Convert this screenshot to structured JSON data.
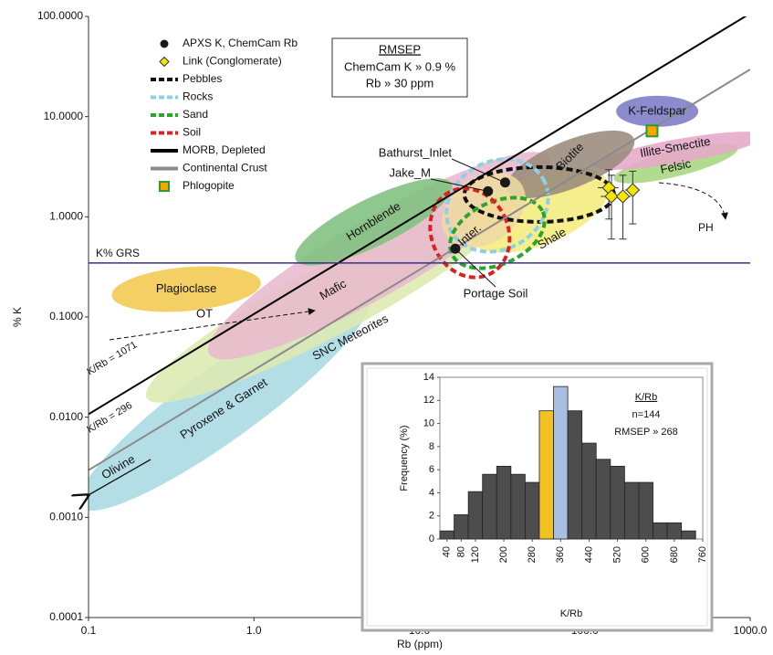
{
  "chart_data": [
    {
      "type": "scatter",
      "log_x": true,
      "log_y": true,
      "xlabel": "Rb (ppm)",
      "ylabel": "% K",
      "xlim": [
        0.1,
        1000
      ],
      "ylim": [
        0.0001,
        100
      ],
      "xticks": [
        0.1,
        {
          "value": 1,
          "label": "1.0"
        },
        {
          "value": 10,
          "label": "10.0"
        },
        {
          "value": 100,
          "label": "100.0"
        },
        {
          "value": 1000,
          "label": "1000.0"
        }
      ],
      "yticks": [
        {
          "value": 0.0001,
          "label": "0.0001"
        },
        {
          "value": 0.001,
          "label": "0.0010"
        },
        {
          "value": 0.01,
          "label": "0.0100"
        },
        {
          "value": 0.1,
          "label": "0.1000"
        },
        {
          "value": 1,
          "label": "1.0000"
        },
        {
          "value": 10,
          "label": "10.0000"
        },
        {
          "value": 100,
          "label": "100.0000"
        }
      ],
      "regions": [
        {
          "label": "Pyroxene & Garnet",
          "color": "#a9d9e2",
          "x": 0.66,
          "y": 0.0142
        },
        {
          "label": "SNC Meteorites",
          "color": "#dde9b2",
          "x": 2.8,
          "y": 0.143
        },
        {
          "label": "Mafic",
          "color": "#e8b9cd",
          "x": 5.7,
          "y": 0.41
        },
        {
          "label": "Hornblende",
          "color": "#7fc07f",
          "x": 5.3,
          "y": 0.89
        },
        {
          "label": "Plagioclase",
          "color": "#f3c84e",
          "x": 0.39,
          "y": 0.19
        },
        {
          "label": "Felsic",
          "color": "#a6d67e",
          "x": 355,
          "y": 3.4
        },
        {
          "label": "Illite-Smectite",
          "color": "#e6a9c9",
          "x": 376,
          "y": 4.57
        },
        {
          "label": "K-Feldspar",
          "color": "#7b7bc6",
          "x": 274,
          "y": 11.3
        },
        {
          "label": "Shale",
          "color": "#f4ec7c",
          "x": 52.5,
          "y": 1.17
        },
        {
          "label": "Biotite",
          "color": "#9a8b7c",
          "x": 81.9,
          "y": 3.34
        },
        {
          "label": "Inter.",
          "color": "#eed9a2",
          "x": 24.5,
          "y": 1.17
        }
      ],
      "grs": {
        "label": "K% GRS",
        "value": 0.346,
        "color": "#3b2e8c"
      },
      "series": [
        {
          "name": "APXS K, ChemCam Rb",
          "kind": "points",
          "marker": "circle",
          "color": "#1a1a1a",
          "x": [
            33,
            26,
            16.5
          ],
          "values": [
            2.2,
            1.8,
            0.48
          ],
          "point_labels": [
            "Bathurst_Inlet",
            "Jake_M",
            "Portage Soil"
          ]
        },
        {
          "name": "Link (Conglomerate)",
          "kind": "points",
          "marker": "diamond",
          "color": "#f5e600",
          "x": [
            140,
            145,
            170,
            195
          ],
          "values": [
            1.95,
            1.6,
            1.6,
            1.85
          ],
          "yerr": [
            1.0,
            1.0,
            1.0,
            1.0
          ],
          "xerr": [
            20,
            20,
            20,
            20
          ]
        },
        {
          "name": "Pebbles",
          "kind": "outline",
          "color": "#111111",
          "x": 53,
          "y": 1.67
        },
        {
          "name": "Rocks",
          "kind": "outline",
          "color": "#8fd0e6",
          "x": 29.6,
          "y": 1.3
        },
        {
          "name": "Sand",
          "kind": "outline",
          "color": "#2aa52a",
          "x": 29.6,
          "y": 0.69
        },
        {
          "name": "Soil",
          "kind": "outline",
          "color": "#e02020",
          "x": 20.2,
          "y": 0.69
        },
        {
          "name": "MORB, Depleted",
          "kind": "ratio_line",
          "color": "#000000",
          "ratio": 1071,
          "label": "K/Rb = 1071"
        },
        {
          "name": "Continental Crust",
          "kind": "ratio_line",
          "color": "#8a8a8a",
          "ratio": 296,
          "label": "K/Rb = 296"
        },
        {
          "name": "Phlogopite",
          "kind": "points",
          "marker": "square",
          "color": "#f5a800",
          "x": [
            255
          ],
          "values": [
            7.2
          ]
        }
      ],
      "rmsep": {
        "title": "RMSEP",
        "lines": [
          "ChemCam  K » 0.9 %",
          "Rb » 30 ppm"
        ]
      },
      "annotations": [
        "OT",
        "PH",
        "Olivine"
      ]
    },
    {
      "type": "bar",
      "xlabel": "K/Rb",
      "ylabel": "Frequency (%)",
      "x": [
        40,
        80,
        120,
        160,
        200,
        240,
        280,
        320,
        360,
        400,
        440,
        480,
        520,
        560,
        600,
        640,
        680,
        720
      ],
      "values": [
        0.7,
        2.1,
        4.1,
        5.6,
        6.3,
        5.6,
        4.9,
        11.1,
        13.2,
        11.1,
        8.3,
        6.9,
        6.3,
        4.9,
        4.9,
        1.4,
        1.4,
        0.7
      ],
      "colors": [
        "#4d4d4d",
        "#4d4d4d",
        "#4d4d4d",
        "#4d4d4d",
        "#4d4d4d",
        "#4d4d4d",
        "#4d4d4d",
        "#f2c320",
        "#a8bfe3",
        "#4d4d4d",
        "#4d4d4d",
        "#4d4d4d",
        "#4d4d4d",
        "#4d4d4d",
        "#4d4d4d",
        "#4d4d4d",
        "#4d4d4d",
        "#4d4d4d"
      ],
      "xlim": [
        20,
        760
      ],
      "ylim": [
        0,
        14
      ],
      "xticks": [
        40,
        80,
        120,
        200,
        280,
        360,
        440,
        520,
        600,
        680,
        760
      ],
      "yticks": [
        0,
        2,
        4,
        6,
        8,
        10,
        12,
        14
      ],
      "annotations": [
        "K/Rb",
        "n=144",
        "RMSEP » 268"
      ]
    }
  ]
}
